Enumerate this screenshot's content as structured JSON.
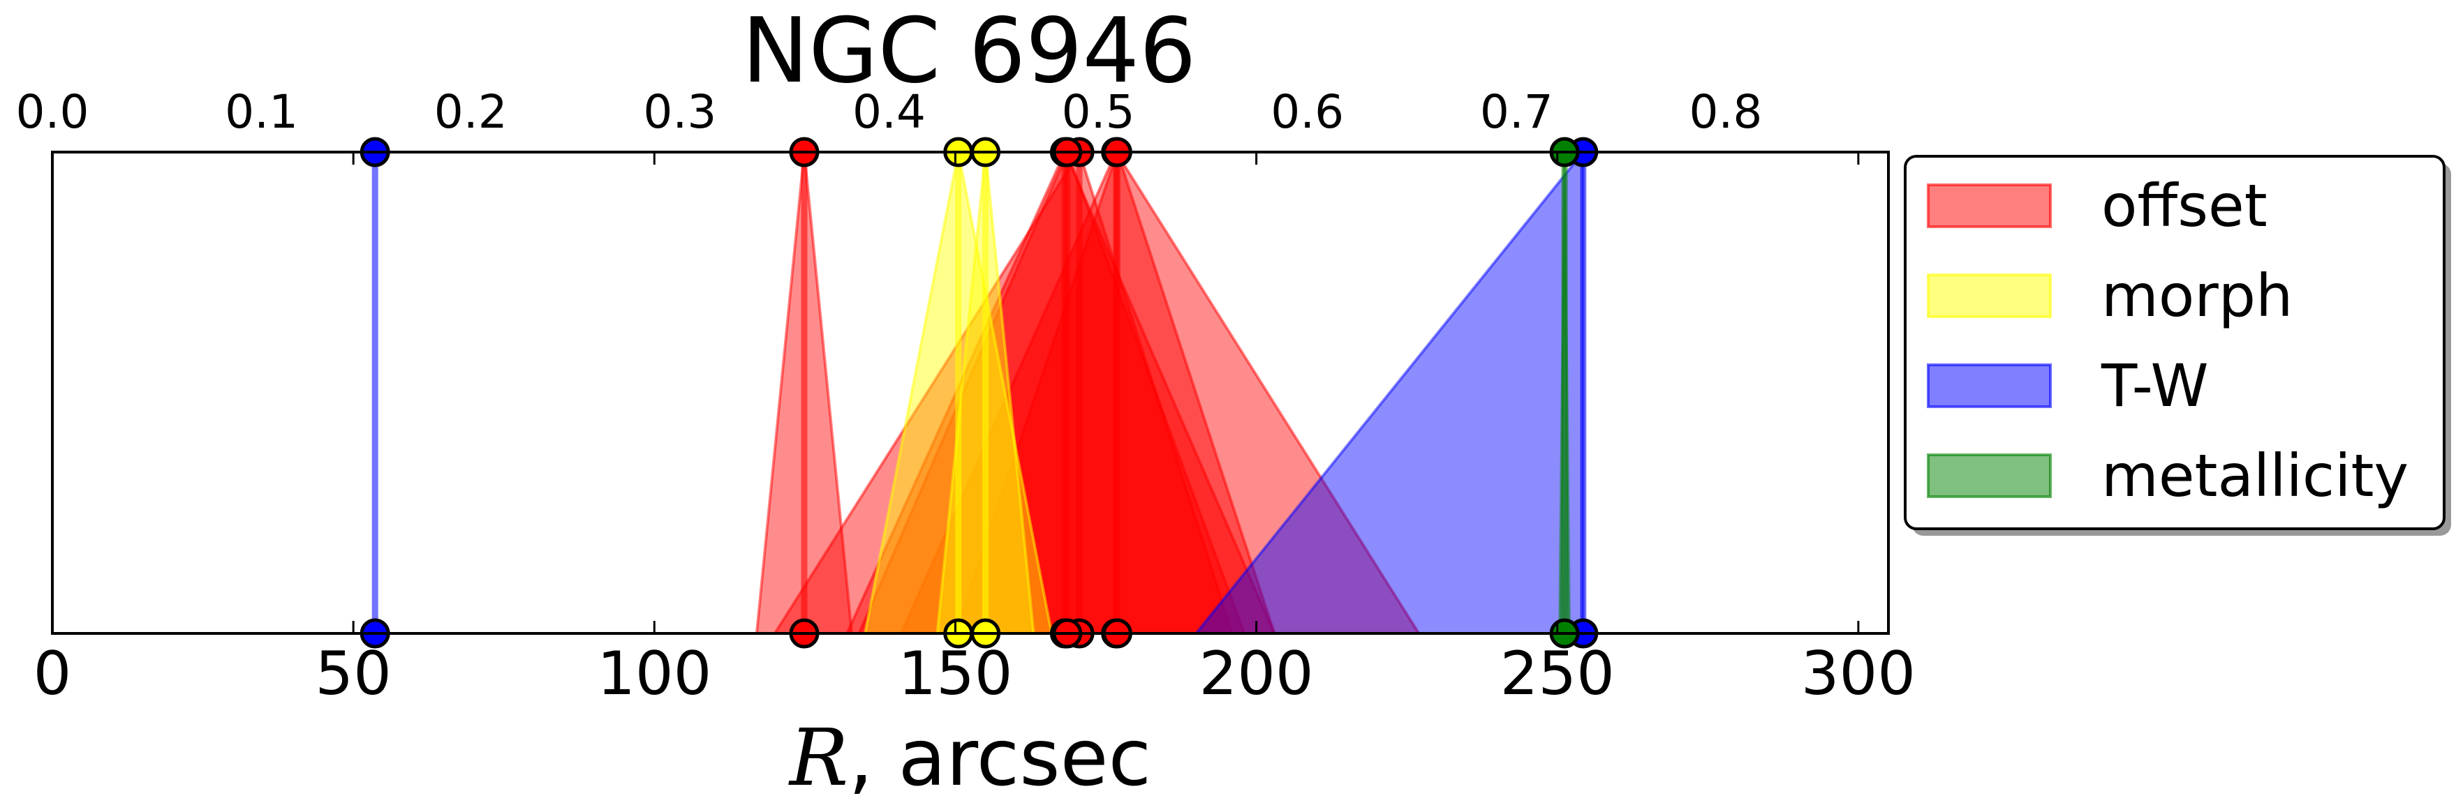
{
  "chart_data": {
    "type": "area",
    "title": "NGC 6946",
    "xlabel_var": "R",
    "xlabel_rest": ", arcsec",
    "xlim": [
      0,
      305
    ],
    "xticks": [
      0,
      50,
      100,
      150,
      200,
      250,
      300
    ],
    "xtick_labels": [
      "0",
      "50",
      "100",
      "150",
      "200",
      "250",
      "300"
    ],
    "top_axis": {
      "scale_per_unit": 0.002878,
      "ticks": [
        0.0,
        0.1,
        0.2,
        0.3,
        0.4,
        0.5,
        0.6,
        0.7,
        0.8
      ],
      "tick_labels": [
        "0.0",
        "0.1",
        "0.2",
        "0.3",
        "0.4",
        "0.5",
        "0.6",
        "0.7",
        "0.8"
      ]
    },
    "grid": false,
    "legend": {
      "location": "outside-right",
      "entries": [
        {
          "label": "offset",
          "color": "#ff0000"
        },
        {
          "label": "morph",
          "color": "#ffff00"
        },
        {
          "label": "T-W",
          "color": "#0000ff"
        },
        {
          "label": "metallicity",
          "color": "#008000"
        }
      ]
    },
    "series": [
      {
        "name": "offset",
        "color": "#ff0000",
        "markers": [
          {
            "r": 124.9,
            "low": 117,
            "high": 132.8
          },
          {
            "r": 168.2,
            "low": 132,
            "high": 203
          },
          {
            "r": 170.6,
            "low": 120,
            "high": 196
          },
          {
            "r": 168.6,
            "low": 134,
            "high": 198
          },
          {
            "r": 176.7,
            "low": 141,
            "high": 227
          },
          {
            "r": 176.9,
            "low": 150,
            "high": 203
          }
        ]
      },
      {
        "name": "morph",
        "color": "#ffff00",
        "markers": [
          {
            "r": 150.5,
            "low": 135,
            "high": 166
          },
          {
            "r": 155.0,
            "low": 147,
            "high": 163
          }
        ]
      },
      {
        "name": "T-W",
        "color": "#0000ff",
        "markers": [
          {
            "r": 53.6,
            "low": 53.6,
            "high": 53.6
          },
          {
            "r": 254.3,
            "low": 190,
            "high": 254.3
          }
        ]
      },
      {
        "name": "metallicity",
        "color": "#008000",
        "markers": [
          {
            "r": 251.2,
            "low": 250.4,
            "high": 252
          }
        ]
      }
    ]
  }
}
